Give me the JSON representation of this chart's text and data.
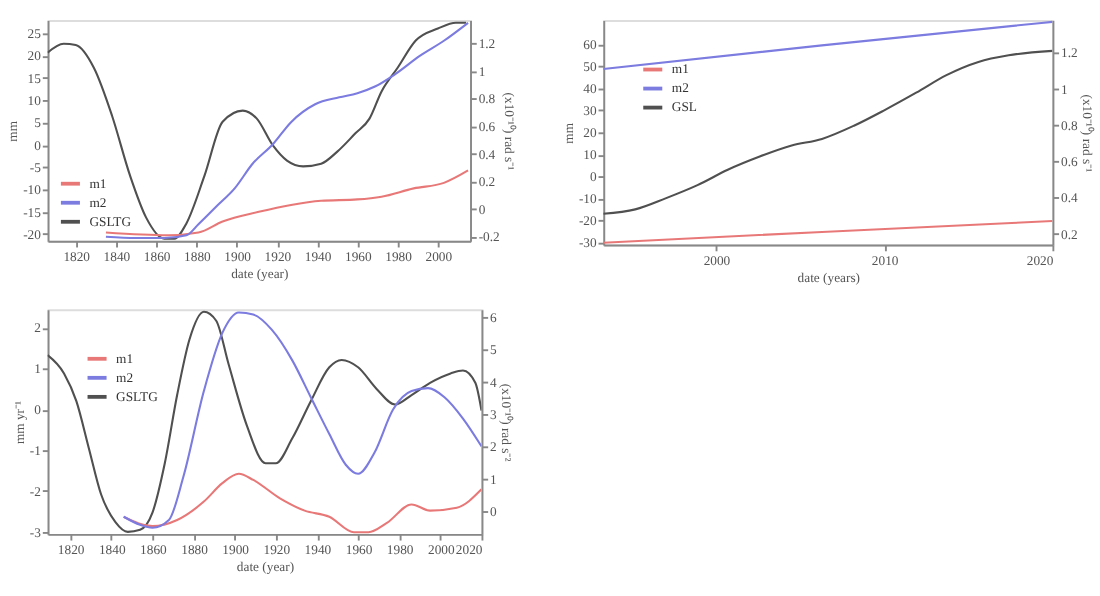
{
  "chart_data": [
    {
      "type": "line",
      "xlabel": "date (year)",
      "ylabel": "mm",
      "y2label": "(x10⁻¹⁰) rad s⁻¹",
      "legend": "bottom left",
      "grid": false,
      "xlim": [
        1806,
        2016
      ],
      "xticks": [
        1820,
        1840,
        1860,
        1880,
        1900,
        1920,
        1940,
        1960,
        1980,
        2000
      ],
      "ylim": [
        -21.5,
        28
      ],
      "yticks": [
        -20,
        -15,
        -10,
        -5,
        0,
        5,
        10,
        15,
        20,
        25
      ],
      "y2lim": [
        -0.23,
        1.37
      ],
      "y2ticks": [
        -0.2,
        0,
        0.2,
        0.4,
        0.6,
        0.8,
        1,
        1.2
      ],
      "series": [
        {
          "name": "m1",
          "color": "#e87878",
          "axis": "y2",
          "x": [
            1835,
            1866,
            1881,
            1893,
            1911,
            1927,
            1942,
            1960,
            1972,
            1988,
            2003,
            2015
          ],
          "values": [
            -0.17,
            -0.19,
            -0.17,
            -0.09,
            -0.02,
            0.03,
            0.06,
            0.07,
            0.09,
            0.15,
            0.19,
            0.28
          ]
        },
        {
          "name": "m2",
          "color": "#7b7be0",
          "axis": "y2",
          "x": [
            1835,
            1850,
            1864,
            1875,
            1881,
            1890,
            1899,
            1908,
            1918,
            1927,
            1939,
            1951,
            1960,
            1969,
            1979,
            1991,
            2003,
            2015
          ],
          "values": [
            -0.2,
            -0.21,
            -0.21,
            -0.19,
            -0.11,
            0.02,
            0.15,
            0.33,
            0.47,
            0.63,
            0.76,
            0.81,
            0.84,
            0.89,
            0.98,
            1.11,
            1.22,
            1.35
          ]
        },
        {
          "name": "GSLTG",
          "color": "#505050",
          "axis": "y",
          "x": [
            1806,
            1814,
            1820,
            1829,
            1838,
            1847,
            1855,
            1864,
            1869,
            1875,
            1884,
            1893,
            1903,
            1910,
            1918,
            1925,
            1933,
            1942,
            1950,
            1959,
            1966,
            1972,
            1980,
            1989,
            2000,
            2009,
            2014
          ],
          "values": [
            20.7,
            22.7,
            22.4,
            17.3,
            6.6,
            -6.9,
            -16.3,
            -21,
            -21,
            -17.6,
            -6.9,
            5.2,
            7.7,
            5.9,
            -0.1,
            -3.5,
            -4.8,
            -4.2,
            -1.5,
            2.6,
            5.9,
            12,
            17.3,
            23.4,
            26.1,
            27.4,
            27.4
          ]
        }
      ]
    },
    {
      "type": "line",
      "xlabel": "date (years)",
      "ylabel": "mm",
      "y2label": "(x10⁻¹⁰) rad s⁻¹",
      "legend": "top left",
      "grid": false,
      "xlim": [
        1993.3,
        2020
      ],
      "xticks": [
        2000,
        2010,
        2020
      ],
      "ylim": [
        -31,
        71
      ],
      "yticks": [
        -30,
        -20,
        -10,
        0,
        10,
        20,
        30,
        40,
        50,
        60
      ],
      "y2lim": [
        0.14,
        1.38
      ],
      "y2ticks": [
        0.2,
        0.4,
        0.6,
        0.8,
        1,
        1.2
      ],
      "series": [
        {
          "name": "m1",
          "color": "#e87878",
          "axis": "y2",
          "x": [
            1993.3,
            2006.3,
            2020
          ],
          "values": [
            0.15,
            0.21,
            0.27
          ]
        },
        {
          "name": "m2",
          "color": "#7b7be0",
          "axis": "y2",
          "x": [
            1993.3,
            2006.3,
            2020
          ],
          "values": [
            1.11,
            1.24,
            1.37
          ]
        },
        {
          "name": "GSL",
          "color": "#505050",
          "axis": "y",
          "x": [
            1993.3,
            1995.2,
            1997,
            1998.9,
            2000.7,
            2002.6,
            2004.5,
            2006.3,
            2008.2,
            2010,
            2011.9,
            2013.7,
            2015.6,
            2017.4,
            2020
          ],
          "values": [
            -17,
            -15,
            -10,
            -4,
            3,
            9,
            14,
            17,
            23,
            30,
            38,
            46,
            52,
            55,
            57
          ]
        }
      ]
    },
    {
      "type": "line",
      "xlabel": "date (year)",
      "ylabel": "mm yr⁻¹",
      "y2label": "(x10⁻¹⁰) rad s⁻²",
      "legend": "top left",
      "grid": false,
      "xlim": [
        1809,
        2020
      ],
      "xticks": [
        1820,
        1840,
        1860,
        1880,
        1900,
        1920,
        1940,
        1960,
        1980,
        2000,
        2020
      ],
      "ylim": [
        -3.05,
        2.45
      ],
      "yticks": [
        -3,
        -2,
        -1,
        0,
        1,
        2
      ],
      "y2lim": [
        -0.7,
        6.25
      ],
      "y2ticks": [
        0,
        1,
        2,
        3,
        4,
        5,
        6
      ],
      "series": [
        {
          "name": "m1",
          "color": "#e87878",
          "axis": "y2",
          "x": [
            1846,
            1860,
            1872,
            1885,
            1894,
            1902,
            1909,
            1922,
            1934,
            1946,
            1958,
            1965,
            1974,
            1986,
            1995,
            2008,
            2020
          ],
          "values": [
            -0.17,
            -0.46,
            -0.27,
            0.3,
            0.87,
            1.16,
            0.97,
            0.4,
            0.02,
            -0.17,
            -0.65,
            -0.65,
            -0.36,
            0.21,
            0.02,
            0.11,
            0.68
          ]
        },
        {
          "name": "m2",
          "color": "#7b7be0",
          "axis": "y2",
          "x": [
            1846,
            1854,
            1860,
            1868,
            1875,
            1885,
            1894,
            1902,
            1909,
            1918,
            1928,
            1937,
            1946,
            1954,
            1960,
            1968,
            1977,
            1986,
            1994,
            2002,
            2011,
            2020
          ],
          "values": [
            -0.17,
            -0.42,
            -0.51,
            -0.27,
            1.06,
            3.72,
            5.52,
            6.15,
            6.09,
            5.62,
            4.67,
            3.53,
            2.39,
            1.44,
            1.16,
            1.82,
            3.15,
            3.72,
            3.81,
            3.53,
            2.87,
            2.01
          ]
        },
        {
          "name": "GSLTG",
          "color": "#505050",
          "axis": "y",
          "x": [
            1809,
            1817,
            1823,
            1829,
            1835,
            1842,
            1848,
            1854,
            1860,
            1866,
            1872,
            1878,
            1885,
            1891,
            1897,
            1906,
            1915,
            1920,
            1928,
            1937,
            1946,
            1952,
            1960,
            1969,
            1978,
            1986,
            1995,
            2005,
            2011,
            2017,
            2020
          ],
          "values": [
            1.33,
            0.88,
            0.2,
            -0.94,
            -2.08,
            -2.76,
            -3,
            -2.95,
            -2.53,
            -1.32,
            0.35,
            1.71,
            2.39,
            2.17,
            1.11,
            -0.41,
            -1.32,
            -1.32,
            -0.71,
            0.2,
            1.03,
            1.21,
            1.03,
            0.5,
            0.12,
            0.35,
            0.65,
            0.88,
            0.95,
            0.65,
            -0.03
          ]
        }
      ]
    }
  ]
}
